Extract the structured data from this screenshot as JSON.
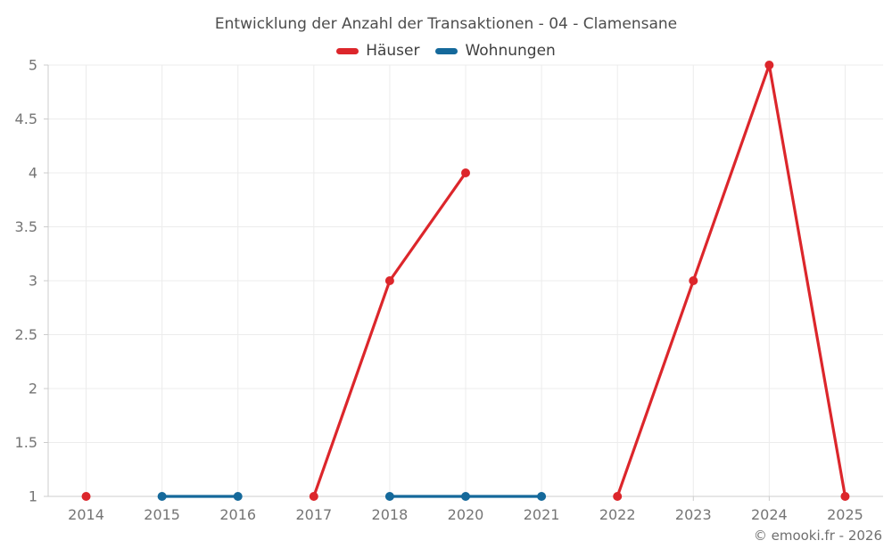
{
  "chart_data": {
    "type": "line",
    "title": "Entwicklung der Anzahl der Transaktionen - 04 - Clamensane",
    "categories": [
      "2014",
      "2015",
      "2016",
      "2017",
      "2018",
      "2020",
      "2021",
      "2022",
      "2023",
      "2024",
      "2025"
    ],
    "series": [
      {
        "name": "Häuser",
        "color": "#dc262b",
        "values": [
          1,
          null,
          null,
          1,
          3,
          4,
          null,
          1,
          3,
          5,
          1
        ]
      },
      {
        "name": "Wohnungen",
        "color": "#15699b",
        "values": [
          null,
          1,
          1,
          null,
          1,
          1,
          1,
          null,
          null,
          null,
          null
        ]
      }
    ],
    "xlabel": "",
    "ylabel": "",
    "ylim": [
      1,
      5
    ],
    "ytick_labels": [
      "5",
      "4.5",
      "4",
      "3.5",
      "3",
      "2.5",
      "2",
      "1.5",
      "1"
    ],
    "grid": true,
    "legend_position": "top"
  },
  "footer": {
    "copyright": "© emooki.fr - 2026"
  },
  "colors": {
    "background": "#ffffff",
    "grid": "#ececec",
    "axis": "#cccccc",
    "tick_label": "#757575",
    "title_text": "#4d4d4d",
    "legend_text": "#3f3f3f",
    "footer_text": "#6f6f6f"
  }
}
